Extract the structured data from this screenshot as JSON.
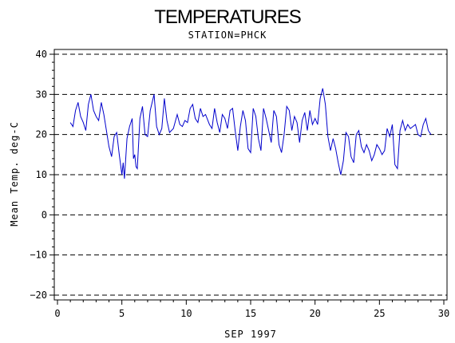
{
  "chart_data": {
    "type": "line",
    "title": "TEMPERATURES",
    "subtitle": "STATION=PHCK",
    "xlabel": "SEP 1997",
    "ylabel": "Mean Temp. deg-C",
    "xlim": [
      0,
      30
    ],
    "ylim": [
      -20,
      40
    ],
    "x_ticks": [
      0,
      5,
      10,
      15,
      20,
      25,
      30
    ],
    "y_ticks": [
      -20,
      -10,
      0,
      10,
      20,
      30,
      40
    ],
    "reference_lines": [
      -20,
      -10,
      0,
      10,
      20,
      30,
      40
    ],
    "grid": "dashed horizontal at each y tick",
    "legend": "none",
    "line_color": "#0000cc",
    "series": [
      {
        "values": [
          [
            1.0,
            23.0
          ],
          [
            1.2,
            22.0
          ],
          [
            1.4,
            26.0
          ],
          [
            1.6,
            28.0
          ],
          [
            1.8,
            24.5
          ],
          [
            2.0,
            23.0
          ],
          [
            2.2,
            21.0
          ],
          [
            2.4,
            27.5
          ],
          [
            2.6,
            30.0
          ],
          [
            2.8,
            26.0
          ],
          [
            3.0,
            24.5
          ],
          [
            3.2,
            23.5
          ],
          [
            3.4,
            28.0
          ],
          [
            3.6,
            25.0
          ],
          [
            3.8,
            21.0
          ],
          [
            4.0,
            17.0
          ],
          [
            4.2,
            14.5
          ],
          [
            4.4,
            19.5
          ],
          [
            4.6,
            20.5
          ],
          [
            4.8,
            15.0
          ],
          [
            5.0,
            10.0
          ],
          [
            5.1,
            13.0
          ],
          [
            5.2,
            9.0
          ],
          [
            5.4,
            19.0
          ],
          [
            5.6,
            22.0
          ],
          [
            5.8,
            24.0
          ],
          [
            5.9,
            14.0
          ],
          [
            6.0,
            15.0
          ],
          [
            6.1,
            12.0
          ],
          [
            6.2,
            11.5
          ],
          [
            6.4,
            24.0
          ],
          [
            6.6,
            27.0
          ],
          [
            6.8,
            20.0
          ],
          [
            7.0,
            19.5
          ],
          [
            7.2,
            26.0
          ],
          [
            7.5,
            30.0
          ],
          [
            7.7,
            22.0
          ],
          [
            7.9,
            20.0
          ],
          [
            8.1,
            21.5
          ],
          [
            8.3,
            29.0
          ],
          [
            8.5,
            23.5
          ],
          [
            8.7,
            20.5
          ],
          [
            9.0,
            21.5
          ],
          [
            9.3,
            25.0
          ],
          [
            9.5,
            22.5
          ],
          [
            9.7,
            22.0
          ],
          [
            9.9,
            23.5
          ],
          [
            10.1,
            23.0
          ],
          [
            10.3,
            26.5
          ],
          [
            10.5,
            27.5
          ],
          [
            10.7,
            24.0
          ],
          [
            10.9,
            23.0
          ],
          [
            11.1,
            26.5
          ],
          [
            11.3,
            24.5
          ],
          [
            11.5,
            25.0
          ],
          [
            11.8,
            22.5
          ],
          [
            12.0,
            21.5
          ],
          [
            12.2,
            26.5
          ],
          [
            12.4,
            23.0
          ],
          [
            12.6,
            20.5
          ],
          [
            12.8,
            25.0
          ],
          [
            13.0,
            24.0
          ],
          [
            13.2,
            21.5
          ],
          [
            13.4,
            26.0
          ],
          [
            13.6,
            26.5
          ],
          [
            13.8,
            21.0
          ],
          [
            14.0,
            16.0
          ],
          [
            14.2,
            22.0
          ],
          [
            14.4,
            26.0
          ],
          [
            14.6,
            23.5
          ],
          [
            14.8,
            16.5
          ],
          [
            15.0,
            15.5
          ],
          [
            15.2,
            26.5
          ],
          [
            15.4,
            24.5
          ],
          [
            15.6,
            19.0
          ],
          [
            15.8,
            16.0
          ],
          [
            16.0,
            26.5
          ],
          [
            16.2,
            24.0
          ],
          [
            16.4,
            21.0
          ],
          [
            16.6,
            18.0
          ],
          [
            16.8,
            26.0
          ],
          [
            17.0,
            24.5
          ],
          [
            17.2,
            17.5
          ],
          [
            17.4,
            15.5
          ],
          [
            17.6,
            20.0
          ],
          [
            17.8,
            27.0
          ],
          [
            18.0,
            26.0
          ],
          [
            18.2,
            21.0
          ],
          [
            18.4,
            24.5
          ],
          [
            18.6,
            23.0
          ],
          [
            18.8,
            18.0
          ],
          [
            19.0,
            23.5
          ],
          [
            19.2,
            25.5
          ],
          [
            19.4,
            21.0
          ],
          [
            19.6,
            26.0
          ],
          [
            19.8,
            22.5
          ],
          [
            20.0,
            24.0
          ],
          [
            20.2,
            22.5
          ],
          [
            20.4,
            29.0
          ],
          [
            20.6,
            31.5
          ],
          [
            20.8,
            27.5
          ],
          [
            21.0,
            19.5
          ],
          [
            21.2,
            16.0
          ],
          [
            21.4,
            19.0
          ],
          [
            21.6,
            16.5
          ],
          [
            21.8,
            13.0
          ],
          [
            22.0,
            10.0
          ],
          [
            22.2,
            13.5
          ],
          [
            22.4,
            20.5
          ],
          [
            22.6,
            19.5
          ],
          [
            22.8,
            14.5
          ],
          [
            23.0,
            13.0
          ],
          [
            23.2,
            20.0
          ],
          [
            23.4,
            21.0
          ],
          [
            23.6,
            17.0
          ],
          [
            23.8,
            15.5
          ],
          [
            24.0,
            17.5
          ],
          [
            24.2,
            16.0
          ],
          [
            24.4,
            13.5
          ],
          [
            24.6,
            15.0
          ],
          [
            24.8,
            17.5
          ],
          [
            25.0,
            16.5
          ],
          [
            25.2,
            15.0
          ],
          [
            25.4,
            16.0
          ],
          [
            25.6,
            21.5
          ],
          [
            25.8,
            19.5
          ],
          [
            26.0,
            22.5
          ],
          [
            26.2,
            12.5
          ],
          [
            26.4,
            11.5
          ],
          [
            26.6,
            21.0
          ],
          [
            26.8,
            23.5
          ],
          [
            27.0,
            21.0
          ],
          [
            27.2,
            22.5
          ],
          [
            27.4,
            21.5
          ],
          [
            27.6,
            22.0
          ],
          [
            27.8,
            22.5
          ],
          [
            28.0,
            20.0
          ],
          [
            28.2,
            19.5
          ],
          [
            28.4,
            22.5
          ],
          [
            28.6,
            24.0
          ],
          [
            28.8,
            21.0
          ],
          [
            29.0,
            20.0
          ]
        ]
      }
    ]
  }
}
